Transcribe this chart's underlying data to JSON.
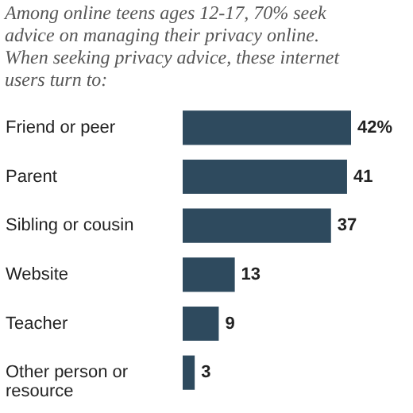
{
  "chart_data": {
    "type": "bar",
    "orientation": "horizontal",
    "title": "Among online teens ages 12-17, 70% seek advice on managing their privacy online. When seeking privacy advice, these internet users turn to:",
    "categories": [
      "Friend or peer",
      "Parent",
      "Sibling or cousin",
      "Website",
      "Teacher",
      "Other person or resource"
    ],
    "values": [
      42,
      41,
      37,
      13,
      9,
      3
    ],
    "value_labels": [
      "42%",
      "41",
      "37",
      "13",
      "9",
      "3"
    ],
    "color": "#2e4a5e"
  }
}
